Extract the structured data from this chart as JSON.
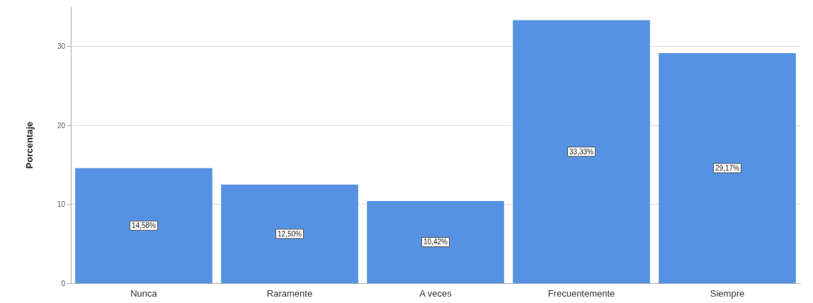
{
  "chart_data": {
    "type": "bar",
    "ylabel": "Porcentaje",
    "categories": [
      "Nunca",
      "Raramente",
      "A veces",
      "Frecuentemente",
      "Siempre"
    ],
    "values": [
      14.58,
      12.5,
      10.42,
      33.33,
      29.17
    ],
    "value_labels": [
      "14,58%",
      "12,50%",
      "10,42%",
      "33,33%",
      "29,17%"
    ],
    "color": "#5593e2",
    "ylim": [
      0,
      35
    ],
    "yticks": [
      0,
      10,
      20,
      30
    ],
    "grid": "y"
  }
}
